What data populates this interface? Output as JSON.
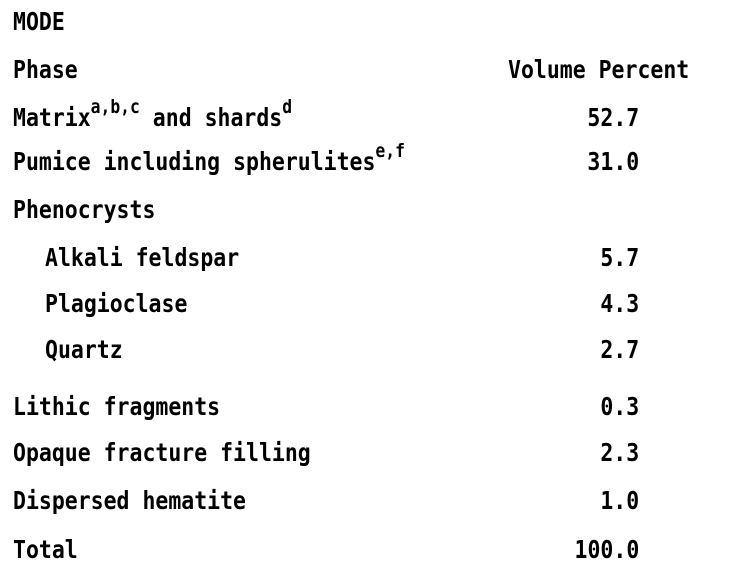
{
  "title": "MODE",
  "header": {
    "phase_label": "Phase",
    "volume_label": "Volume Percent"
  },
  "rows": [
    {
      "name": "Matrix",
      "sup1": "a,b,c",
      "mid": " and shards",
      "sup2": "d",
      "value": "52.7"
    },
    {
      "name": "Pumice including spherulites",
      "sup1": "e,f",
      "value": "31.0"
    },
    {
      "name": "Phenocrysts",
      "value": ""
    },
    {
      "name": "Alkali feldspar",
      "value": "5.7"
    },
    {
      "name": "Plagioclase",
      "value": "4.3"
    },
    {
      "name": "Quartz",
      "value": "2.7"
    },
    {
      "name": "Lithic fragments",
      "value": "0.3"
    },
    {
      "name": "Opaque fracture filling",
      "value": "2.3"
    },
    {
      "name": "Dispersed hematite",
      "value": "1.0"
    },
    {
      "name": "Total",
      "value": "100.0"
    }
  ]
}
